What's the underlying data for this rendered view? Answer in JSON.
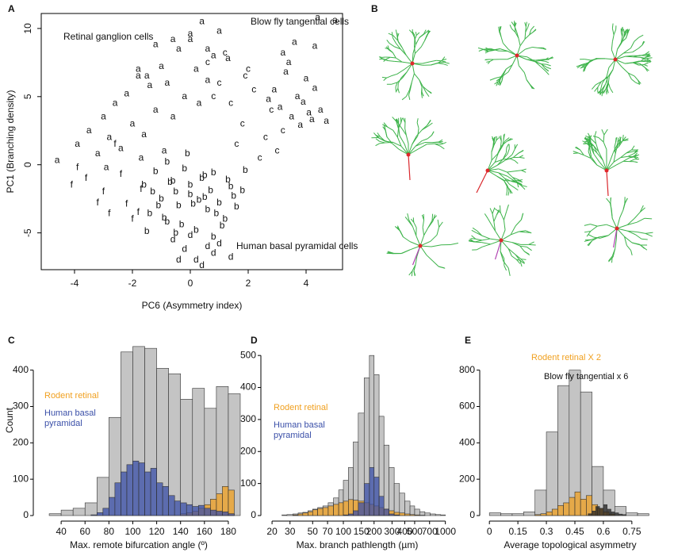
{
  "chart_data": [
    {
      "type": "scatter",
      "label": "A",
      "xlabel": "PC6 (Asymmetry index)",
      "ylabel": "PC1 (Branching density)",
      "xlim": [
        -5.15,
        5.26
      ],
      "ylim": [
        -7.7,
        11.1
      ],
      "xticks": [
        -4,
        -2,
        0,
        2,
        4
      ],
      "yticks": [
        -5,
        0,
        5,
        10
      ],
      "annotations": [
        {
          "text": "Retinal ganglion cells",
          "color": "#f0a020"
        },
        {
          "text": "Blow fly tangential cells",
          "color": "#111111"
        },
        {
          "text": "Human basal pyramidal cells",
          "color": "#2c4aa0"
        }
      ],
      "series": [
        {
          "marker": "c",
          "color": "#bdbdbd",
          "x": [
            0.6,
            1.0,
            1.4,
            1.8,
            2.2,
            2.6,
            3.0,
            1.2,
            2.0,
            2.8,
            0.8,
            1.6,
            2.4,
            3.2,
            1.9
          ],
          "values": [
            7.5,
            6.0,
            4.5,
            3.0,
            5.5,
            2.0,
            1.0,
            8.2,
            7.0,
            4.0,
            5.0,
            1.5,
            0.5,
            2.5,
            6.5
          ]
        },
        {
          "marker": "d",
          "color": "#bdbdbd",
          "x": [
            -0.6,
            -0.2,
            0.2,
            0.6,
            1.0,
            1.4,
            0.4,
            -0.4,
            0.8,
            0.0
          ],
          "values": [
            -5.5,
            -6.2,
            -7.0,
            -6.0,
            -5.8,
            -6.8,
            -7.4,
            -7.0,
            -6.5,
            -5.2
          ]
        },
        {
          "marker": "f",
          "color": "#bdbdbd",
          "x": [
            -4.1,
            -3.6,
            -3.2,
            -2.8,
            -2.4,
            -2.0,
            -1.7,
            -3.9,
            -3.0,
            -2.2,
            -2.6,
            -1.8
          ],
          "values": [
            -1.5,
            -1.0,
            -2.8,
            -3.6,
            -0.7,
            -4.0,
            -1.8,
            -0.2,
            -2.0,
            -2.9,
            1.5,
            -3.5
          ]
        },
        {
          "marker": "a",
          "color": "#bdbdbd",
          "x": [
            -1.8,
            -1.2,
            -0.6,
            0.6,
            -1.5,
            0.0
          ],
          "values": [
            7.0,
            8.8,
            9.2,
            8.5,
            6.5,
            9.6
          ]
        },
        {
          "marker": "a",
          "color": "#f0a020",
          "x": [
            -4.6,
            -3.9,
            -3.5,
            -3.2,
            -3.0,
            -2.8,
            -2.6,
            -2.4,
            -2.2,
            -2.0,
            -1.8,
            -1.6,
            -1.4,
            -1.2,
            -1.0,
            -0.8,
            -0.6,
            -0.4,
            -0.2,
            0.0,
            0.2,
            0.4,
            0.6,
            0.8,
            1.0,
            1.3,
            -1.7,
            -2.9,
            -0.9,
            0.3
          ],
          "values": [
            0.3,
            1.5,
            2.5,
            0.8,
            3.5,
            2.0,
            4.5,
            1.2,
            5.2,
            3.0,
            6.5,
            2.2,
            5.8,
            4.0,
            7.2,
            6.0,
            3.5,
            8.5,
            5.0,
            9.2,
            7.0,
            10.5,
            6.2,
            8.0,
            9.8,
            7.8,
            0.5,
            -0.2,
            1.0,
            4.5
          ]
        },
        {
          "marker": "b",
          "color": "#2c4aa0",
          "x": [
            -1.6,
            -1.4,
            -1.2,
            -1.0,
            -0.8,
            -0.6,
            -0.4,
            -0.2,
            0.0,
            0.2,
            0.4,
            0.6,
            0.8,
            1.0,
            1.2,
            1.4,
            1.6,
            1.9,
            -1.3,
            -0.9,
            -0.5,
            -0.1,
            0.3,
            0.7,
            1.1,
            1.5,
            -1.1,
            -0.7,
            -0.3,
            0.1,
            0.5,
            0.9,
            1.3,
            -0.5,
            0.0,
            0.5,
            -1.5,
            1.8,
            -0.8,
            0.8
          ],
          "values": [
            -1.5,
            -3.6,
            -0.5,
            -2.5,
            -4.2,
            -1.2,
            -3.0,
            -0.3,
            -2.2,
            -4.8,
            -1.0,
            -3.3,
            -0.6,
            -2.8,
            -4.0,
            -1.6,
            -3.1,
            -0.4,
            -2.0,
            -3.9,
            -5.0,
            0.8,
            -2.6,
            -1.9,
            -4.5,
            -2.3,
            -3.0,
            -1.3,
            -4.4,
            -2.9,
            -0.8,
            -3.6,
            -1.1,
            -2.0,
            -1.5,
            -2.4,
            -4.9,
            -1.9,
            0.2,
            -5.3
          ]
        },
        {
          "marker": "a",
          "color": "#111111",
          "x": [
            2.9,
            3.1,
            3.3,
            3.5,
            3.7,
            3.9,
            4.1,
            4.3,
            4.5,
            4.7,
            3.2,
            3.6,
            4.0,
            4.4,
            3.4,
            3.8,
            4.2,
            2.7,
            4.3,
            5.0
          ],
          "values": [
            5.5,
            4.2,
            6.8,
            3.5,
            5.0,
            4.6,
            3.8,
            5.6,
            4.0,
            3.2,
            8.2,
            9.0,
            6.3,
            10.8,
            7.5,
            2.9,
            3.3,
            4.8,
            8.7,
            10.6
          ]
        }
      ]
    },
    {
      "type": "image",
      "label": "B"
    },
    {
      "type": "histogram",
      "label": "C",
      "xlabel": "Max. remote bifurcation angle (º)",
      "ylabel": "Count",
      "xlim": [
        20,
        190
      ],
      "ylim": [
        0,
        480
      ],
      "xticks": [
        40,
        60,
        80,
        100,
        120,
        140,
        160,
        180
      ],
      "yticks": [
        0,
        100,
        200,
        300,
        400
      ],
      "series": [
        {
          "color": "#c4c4c4",
          "bins": [
            30,
            40,
            50,
            60,
            70,
            80,
            90,
            100,
            110,
            120,
            130,
            140,
            150,
            160,
            170,
            180,
            190
          ],
          "values": [
            5,
            15,
            20,
            35,
            105,
            270,
            450,
            465,
            460,
            405,
            390,
            320,
            350,
            295,
            355,
            335
          ]
        },
        {
          "name": "Rodent retinal",
          "color": "#f0a020",
          "bins": [
            140,
            145,
            150,
            155,
            160,
            165,
            170,
            175,
            180,
            185
          ],
          "values": [
            5,
            8,
            12,
            20,
            30,
            45,
            60,
            80,
            70
          ]
        },
        {
          "name": "Human basal pyramidal",
          "color": "#3a4fa8",
          "bins": [
            65,
            70,
            75,
            80,
            85,
            90,
            95,
            100,
            105,
            110,
            115,
            120,
            125,
            130,
            135,
            140,
            145,
            150,
            155,
            160,
            165,
            170,
            175,
            180,
            185
          ],
          "values": [
            2,
            8,
            20,
            50,
            90,
            120,
            140,
            150,
            145,
            120,
            130,
            90,
            80,
            55,
            40,
            35,
            30,
            25,
            28,
            20,
            15,
            12,
            10,
            5
          ]
        }
      ]
    },
    {
      "type": "histogram",
      "label": "D",
      "xlabel": "Max. branch pathlength (µm)",
      "xscale": "log",
      "xlim": [
        17,
        1100
      ],
      "ylim": [
        0,
        545
      ],
      "xticks": [
        20,
        30,
        50,
        70,
        100,
        150,
        200,
        300,
        400,
        500,
        700,
        1000
      ],
      "yticks": [
        0,
        100,
        200,
        300,
        400,
        500
      ],
      "series": [
        {
          "color": "#c4c4c4",
          "bins": [
            25,
            28,
            32,
            36,
            40,
            45,
            50,
            56,
            63,
            71,
            80,
            90,
            100,
            112,
            125,
            140,
            160,
            180,
            200,
            224,
            250,
            280,
            315,
            355,
            400,
            450,
            500,
            560,
            630,
            710,
            800,
            900,
            1000
          ],
          "values": [
            2,
            3,
            5,
            8,
            10,
            15,
            20,
            25,
            30,
            40,
            55,
            80,
            110,
            150,
            230,
            320,
            430,
            500,
            440,
            310,
            220,
            150,
            100,
            70,
            45,
            30,
            20,
            12,
            8,
            5,
            3,
            2
          ]
        },
        {
          "name": "Rodent retinal",
          "color": "#f0a020",
          "bins": [
            25,
            28,
            32,
            36,
            40,
            45,
            50,
            56,
            63,
            71,
            80,
            90,
            100,
            112,
            125,
            140,
            160,
            180,
            200,
            224,
            250,
            280,
            315,
            355,
            400,
            450,
            500,
            560,
            630,
            710,
            800,
            900,
            1000
          ],
          "values": [
            0,
            0,
            2,
            5,
            8,
            12,
            18,
            22,
            25,
            30,
            35,
            40,
            45,
            50,
            48,
            45,
            40,
            35,
            30,
            25,
            20,
            15,
            10,
            8,
            5,
            3,
            2,
            1,
            0,
            0,
            0,
            0
          ]
        },
        {
          "name": "Human basal pyramidal",
          "color": "#3a4fa8",
          "bins": [
            25,
            28,
            32,
            36,
            40,
            45,
            50,
            56,
            63,
            71,
            80,
            90,
            100,
            112,
            125,
            140,
            160,
            180,
            200,
            224,
            250,
            280,
            315,
            355,
            400,
            450,
            500,
            560,
            630,
            710,
            800,
            900,
            1000
          ],
          "values": [
            0,
            0,
            0,
            0,
            0,
            0,
            0,
            0,
            0,
            0,
            0,
            0,
            2,
            5,
            15,
            40,
            100,
            150,
            120,
            60,
            20,
            5,
            2,
            0,
            0,
            0,
            0,
            0,
            0,
            0,
            0,
            0
          ]
        }
      ]
    },
    {
      "type": "histogram",
      "label": "E",
      "xlabel": "Average topological asymmetry",
      "xlim": [
        -0.03,
        0.88
      ],
      "ylim": [
        0,
        960
      ],
      "xticks": [
        0,
        0.15,
        0.3,
        0.45,
        0.6,
        0.75
      ],
      "yticks": [
        0,
        200,
        400,
        600,
        800
      ],
      "series": [
        {
          "color": "#c4c4c4",
          "bins": [
            0,
            0.06,
            0.12,
            0.18,
            0.24,
            0.3,
            0.36,
            0.42,
            0.48,
            0.54,
            0.6,
            0.66,
            0.72,
            0.78,
            0.84
          ],
          "values": [
            15,
            10,
            10,
            20,
            140,
            460,
            715,
            800,
            680,
            270,
            140,
            50,
            15,
            10
          ]
        },
        {
          "name": "Rodent retinal X 2",
          "color": "#f0a020",
          "bins": [
            0.24,
            0.27,
            0.3,
            0.33,
            0.36,
            0.39,
            0.42,
            0.45,
            0.48,
            0.51,
            0.54,
            0.57,
            0.6,
            0.63,
            0.66
          ],
          "values": [
            5,
            10,
            20,
            35,
            55,
            70,
            100,
            130,
            90,
            110,
            60,
            40,
            20,
            8
          ]
        },
        {
          "name": "Blow fly tangential x 6",
          "color": "#222222",
          "bins": [
            0.52,
            0.54,
            0.56,
            0.58,
            0.6,
            0.62,
            0.64,
            0.66,
            0.68,
            0.7,
            0.72
          ],
          "values": [
            10,
            25,
            50,
            40,
            60,
            35,
            20,
            15,
            8,
            5
          ]
        }
      ]
    }
  ]
}
